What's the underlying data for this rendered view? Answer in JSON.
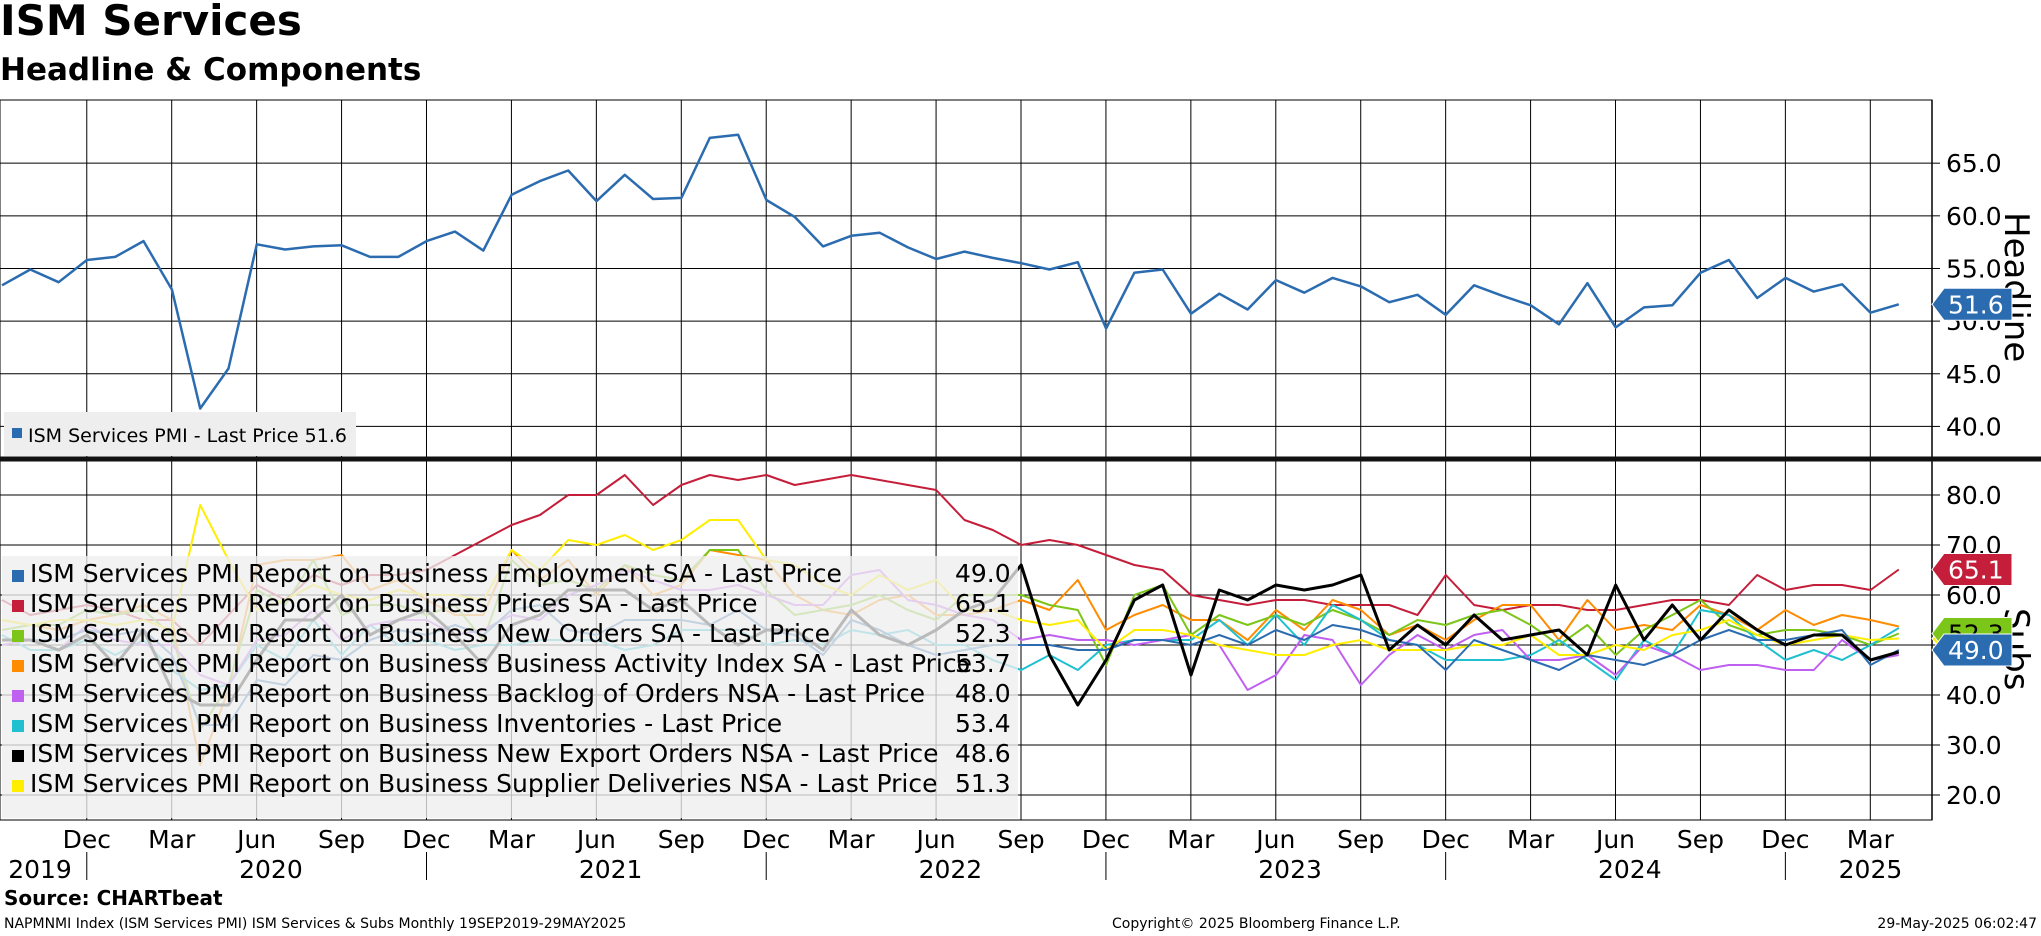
{
  "title": "ISM Services",
  "subtitle": "Headline & Components",
  "source": "Source: CHARTbeat",
  "footer_left": "NAPMNMI Index (ISM Services PMI) ISM Services & Subs  Monthly 19SEP2019-29MAY2025",
  "footer_center": "Copyright© 2025 Bloomberg Finance L.P.",
  "footer_right": "29-May-2025 06:02:47",
  "chart_data": [
    {
      "type": "line",
      "title": "Headline",
      "ylabel": "Headline",
      "ylim": [
        37,
        71
      ],
      "yticks": [
        "40.0",
        "45.0",
        "50.0",
        "55.0",
        "60.0",
        "65.0"
      ],
      "x_start": "2019-09",
      "x_end": "2025-04",
      "series": [
        {
          "name": "ISM Services PMI",
          "legend": "ISM Services PMI - Last Price 51.6",
          "last_label": "51.6",
          "color": "#2b6cb0",
          "values": [
            53.4,
            54.9,
            53.7,
            55.8,
            56.1,
            57.6,
            53.0,
            41.7,
            45.5,
            57.3,
            56.8,
            57.1,
            57.2,
            56.1,
            56.1,
            57.6,
            58.5,
            56.7,
            62.0,
            63.3,
            64.3,
            61.4,
            63.9,
            61.6,
            61.7,
            67.4,
            67.7,
            61.5,
            59.9,
            57.1,
            58.1,
            58.4,
            57.0,
            55.9,
            56.6,
            56.0,
            55.5,
            54.9,
            55.6,
            49.3,
            54.6,
            54.9,
            50.7,
            52.6,
            51.1,
            53.9,
            52.7,
            54.1,
            53.3,
            51.8,
            52.5,
            50.6,
            53.4,
            52.4,
            51.5,
            49.7,
            53.6,
            49.4,
            51.3,
            51.5,
            54.6,
            55.8,
            52.2,
            54.1,
            52.8,
            53.5,
            50.8,
            51.6
          ]
        }
      ]
    },
    {
      "type": "line",
      "title": "Subs",
      "ylabel": "Subs",
      "ylim": [
        15,
        87
      ],
      "yticks": [
        "20.0",
        "30.0",
        "40.0",
        "50.0",
        "60.0",
        "70.0",
        "80.0"
      ],
      "x_start": "2019-09",
      "x_end": "2025-04",
      "series": [
        {
          "name": "ISM Services PMI Report on Business Employment SA - Last Price",
          "last": "49.0",
          "last_label": "49.0",
          "color": "#2b6cb0",
          "values": [
            51,
            51,
            51,
            53,
            52,
            53,
            48,
            34,
            34,
            43,
            42,
            48,
            47,
            51,
            53,
            52,
            54,
            52,
            57,
            58,
            53,
            52,
            55,
            55,
            55,
            54,
            57,
            53,
            52,
            48,
            55,
            53,
            50,
            48,
            49,
            50,
            50,
            50,
            49,
            49,
            51,
            51,
            50,
            52,
            50,
            53,
            51,
            54,
            53,
            51,
            50,
            45,
            51,
            49,
            47,
            45,
            48,
            47,
            46,
            48,
            51,
            53,
            51,
            51,
            52,
            53,
            46,
            49
          ]
        },
        {
          "name": "ISM Services PMI Report on Business Prices SA - Last Price",
          "last": "65.1",
          "last_label": "65.1",
          "color": "#c41e3a",
          "values": [
            59,
            56,
            57,
            58,
            57,
            55,
            55,
            50,
            56,
            62,
            59,
            64,
            62,
            64,
            64,
            65,
            68,
            71,
            74,
            76,
            80,
            80,
            84,
            78,
            82,
            84,
            83,
            84,
            82,
            83,
            84,
            83,
            82,
            81,
            75,
            73,
            70,
            71,
            70,
            68,
            66,
            65,
            60,
            59,
            58,
            59,
            59,
            58,
            58,
            58,
            56,
            64,
            58,
            57,
            58,
            58,
            57,
            57,
            58,
            59,
            59,
            58,
            64,
            61,
            62,
            62,
            61,
            65.1
          ]
        },
        {
          "name": "ISM Services PMI Report on Business New Orders SA - Last Price",
          "last": "52.3",
          "last_label": "52.3",
          "color": "#7bc618",
          "values": [
            53,
            54,
            54,
            57,
            56,
            57,
            52,
            33,
            42,
            61,
            58,
            67,
            56,
            58,
            58,
            56,
            58,
            51,
            67,
            62,
            63,
            61,
            66,
            64,
            63,
            69,
            69,
            61,
            56,
            57,
            58,
            60,
            57,
            55,
            60,
            60,
            60,
            58,
            57,
            46,
            60,
            62,
            52,
            56,
            54,
            56,
            54,
            57,
            55,
            52,
            55,
            54,
            56,
            57,
            54,
            50,
            54,
            48,
            53,
            56,
            59,
            54,
            52,
            53,
            53,
            52,
            50,
            52.3
          ]
        },
        {
          "name": "ISM Services PMI Report on Business Business Activity Index SA - Last Price",
          "last": "53.7",
          "last_label": "53.7",
          "color": "#ff8c00",
          "values": [
            55,
            54,
            53,
            55,
            56,
            58,
            55,
            26,
            41,
            66,
            67,
            67,
            68,
            61,
            63,
            59,
            56,
            56,
            69,
            63,
            67,
            60,
            66,
            60,
            62,
            69,
            68,
            67,
            60,
            57,
            56,
            59,
            60,
            56,
            56,
            57,
            59,
            57,
            63,
            53,
            56,
            58,
            55,
            55,
            51,
            57,
            53,
            59,
            57,
            52,
            54,
            51,
            55,
            58,
            58,
            51,
            59,
            53,
            54,
            53,
            58,
            56,
            53,
            57,
            54,
            56,
            55,
            53.7
          ]
        },
        {
          "name": "ISM Services PMI Report on Business Backlog of Orders NSA - Last Price",
          "last": "48.0",
          "last_label": "48.0",
          "color": "#c060f0",
          "values": [
            50,
            51,
            49,
            54,
            51,
            50,
            50,
            44,
            42,
            51,
            52,
            57,
            51,
            54,
            55,
            55,
            52,
            53,
            56,
            55,
            60,
            62,
            65,
            63,
            61,
            61,
            62,
            60,
            58,
            58,
            64,
            65,
            59,
            58,
            56,
            55,
            51,
            52,
            51,
            51,
            50,
            51,
            52,
            50,
            41,
            44,
            52,
            51,
            42,
            48,
            52,
            49,
            52,
            53,
            47,
            47,
            48,
            44,
            50,
            48,
            45,
            46,
            46,
            45,
            45,
            51,
            47,
            48.0
          ]
        },
        {
          "name": "ISM Services PMI Report on Business Inventories - Last Price",
          "last": "53.4",
          "last_label": "53.4",
          "color": "#20c0d0",
          "values": [
            52,
            49,
            49,
            51,
            48,
            51,
            45,
            41,
            42,
            50,
            47,
            55,
            48,
            54,
            50,
            51,
            49,
            50,
            50,
            51,
            51,
            51,
            49,
            50,
            53,
            53,
            53,
            50,
            51,
            50,
            53,
            52,
            53,
            50,
            50,
            47,
            45,
            48,
            45,
            50,
            51,
            51,
            51,
            55,
            50,
            56,
            50,
            58,
            55,
            51,
            50,
            47,
            47,
            47,
            48,
            51,
            47,
            43,
            51,
            48,
            57,
            56,
            51,
            47,
            49,
            47,
            50,
            53.4
          ]
        },
        {
          "name": "ISM Services PMI Report on Business New Export Orders NSA - Last Price",
          "last": "48.6",
          "last_label": "48.6",
          "color": "#000000",
          "values": [
            51,
            51,
            49,
            52,
            46,
            53,
            41,
            38,
            38,
            47,
            55,
            55,
            60,
            52,
            55,
            57,
            52,
            46,
            54,
            56,
            61,
            61,
            61,
            57,
            59,
            54,
            50,
            53,
            53,
            49,
            57,
            52,
            50,
            53,
            57,
            59,
            66,
            48,
            38,
            47,
            59,
            62,
            44,
            61,
            59,
            62,
            61,
            62,
            64,
            49,
            54,
            50,
            56,
            51,
            52,
            53,
            48,
            62,
            51,
            58,
            51,
            57,
            53,
            50,
            52,
            52,
            47,
            48.6
          ]
        },
        {
          "name": "ISM Services PMI Report on Business Supplier Deliveries NSA - Last Price",
          "last": "51.3",
          "last_label": "51.3",
          "color": "#ffee00",
          "values": [
            55,
            54,
            55,
            55,
            54,
            55,
            53,
            78,
            67,
            57,
            59,
            62,
            60,
            59,
            61,
            60,
            60,
            59,
            69,
            65,
            71,
            70,
            72,
            69,
            71,
            75,
            75,
            67,
            66,
            62,
            60,
            64,
            61,
            63,
            57,
            57,
            55,
            54,
            55,
            49,
            53,
            53,
            52,
            50,
            49,
            48,
            48,
            50,
            51,
            49,
            49,
            49,
            50,
            50,
            52,
            48,
            48,
            50,
            49,
            52,
            53,
            55,
            52,
            50,
            51,
            52,
            51,
            51.3
          ]
        }
      ]
    }
  ],
  "x_month_labels": [
    "Dec",
    "Mar",
    "Jun",
    "Sep",
    "Dec",
    "Mar",
    "Jun",
    "Sep",
    "Dec",
    "Mar",
    "Jun",
    "Sep",
    "Dec",
    "Mar",
    "Jun",
    "Sep",
    "Dec",
    "Mar",
    "Jun",
    "Sep",
    "Dec",
    "Mar"
  ],
  "x_year_labels": [
    "2019",
    "2020",
    "2021",
    "2022",
    "2023",
    "2024",
    "2025"
  ],
  "colors": {
    "grid": "#000000",
    "legend_bg": "#eeeeee"
  }
}
